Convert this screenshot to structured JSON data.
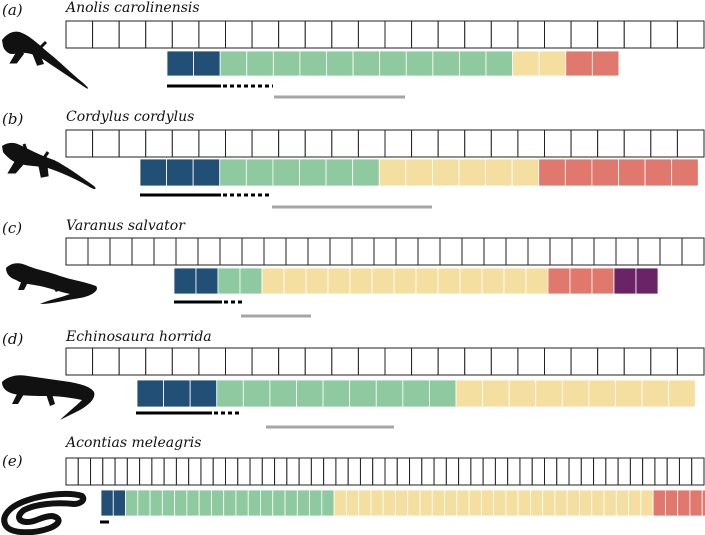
{
  "colors": {
    "dark_blue": "#214f75",
    "green": "#8ec9a0",
    "yellow": "#f5dfa0",
    "red": "#e1786e",
    "purple": "#6b2368",
    "grey_bar": "#a6a6a6",
    "black_bar": "#000000",
    "cell_outline": "#222222"
  },
  "panels": [
    {
      "letter": "(a)",
      "species": "Anolis carolinensis",
      "silhouette": "anole-lizard-icon",
      "vertebra_count": 24,
      "blocks": [
        {
          "color": "dark_blue",
          "count": 2
        },
        {
          "color": "green",
          "count": 11
        },
        {
          "color": "yellow",
          "count": 2
        },
        {
          "color": "red",
          "count": 2
        }
      ]
    },
    {
      "letter": "(b)",
      "species": "Cordylus cordylus",
      "silhouette": "girdled-lizard-icon",
      "vertebra_count": 24,
      "blocks": [
        {
          "color": "dark_blue",
          "count": 3
        },
        {
          "color": "green",
          "count": 6
        },
        {
          "color": "yellow",
          "count": 6
        },
        {
          "color": "red",
          "count": 6
        }
      ]
    },
    {
      "letter": "(c)",
      "species": "Varanus salvator",
      "silhouette": "monitor-lizard-icon",
      "vertebra_count": 29,
      "blocks": [
        {
          "color": "dark_blue",
          "count": 2
        },
        {
          "color": "green",
          "count": 2
        },
        {
          "color": "yellow",
          "count": 13
        },
        {
          "color": "red",
          "count": 3
        },
        {
          "color": "purple",
          "count": 2
        }
      ]
    },
    {
      "letter": "(d)",
      "species": "Echinosaura horrida",
      "silhouette": "spiny-lizard-icon",
      "vertebra_count": 24,
      "blocks": [
        {
          "color": "dark_blue",
          "count": 3
        },
        {
          "color": "green",
          "count": 9
        },
        {
          "color": "yellow",
          "count": 9
        }
      ]
    },
    {
      "letter": "(e)",
      "species": "Acontias meleagris",
      "silhouette": "legless-skink-icon",
      "vertebra_count": 52,
      "blocks": [
        {
          "color": "dark_blue",
          "count": 2
        },
        {
          "color": "green",
          "count": 17
        },
        {
          "color": "yellow",
          "count": 26
        },
        {
          "color": "red",
          "count": 5
        }
      ]
    }
  ]
}
